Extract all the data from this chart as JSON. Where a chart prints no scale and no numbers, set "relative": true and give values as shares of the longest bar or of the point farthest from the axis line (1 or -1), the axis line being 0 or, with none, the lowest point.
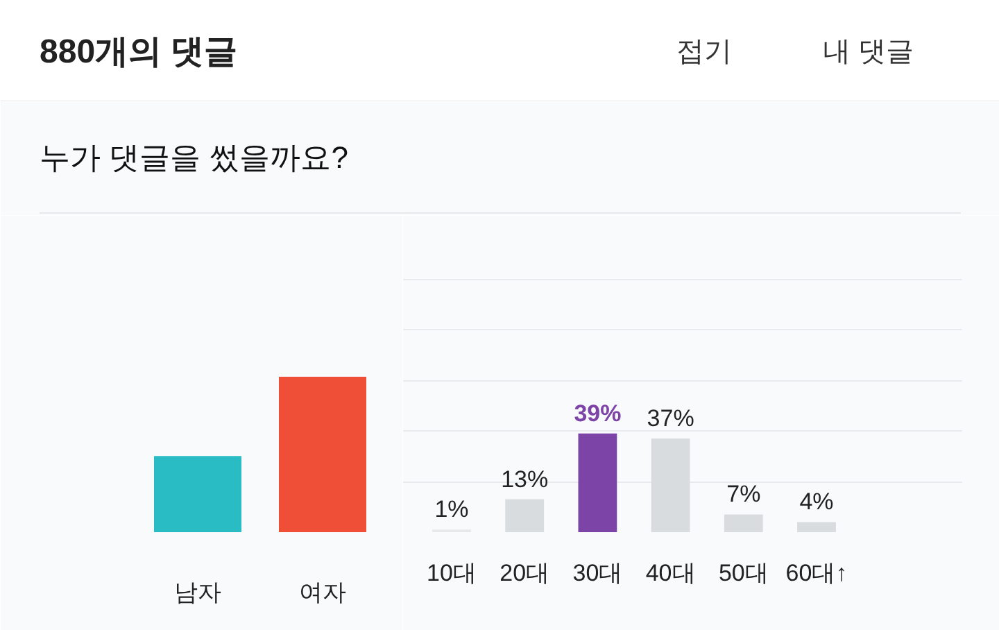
{
  "chart_data": [
    {
      "type": "bar",
      "title": "880개의 댓글",
      "subtitle": "누가 댓글을 썼을까요?",
      "annotations": [
        "접기",
        "내 댓글"
      ],
      "categories": [
        "남자",
        "여자"
      ],
      "values": [
        0.49,
        1
      ],
      "colors": [
        "#29bcc4",
        "#ef4f37"
      ],
      "relative": true
    },
    {
      "type": "bar",
      "categories": [
        "10대",
        "20대",
        "30대",
        "40대",
        "50대",
        "60대↑"
      ],
      "values": [
        1,
        13,
        39,
        37,
        7,
        4
      ],
      "colors": [
        "#e6e8ea",
        "#d9dcdf",
        "#7b44a6",
        "#d9dcdf",
        "#d9dcdf",
        "#d9dcdf"
      ],
      "value_labels": [
        "1%",
        "13%",
        "39%",
        "37%",
        "7%",
        "4%"
      ],
      "ylim": [
        0,
        125
      ],
      "yticks": [
        {
          "value": 0,
          "label": null
        },
        {
          "value": 20,
          "label": null
        },
        {
          "value": 40,
          "label": null
        },
        {
          "value": 60,
          "label": null
        },
        {
          "value": 80,
          "label": null
        },
        {
          "value": 100,
          "label": null
        }
      ],
      "grid": "y",
      "tick_labels": "x"
    }
  ]
}
